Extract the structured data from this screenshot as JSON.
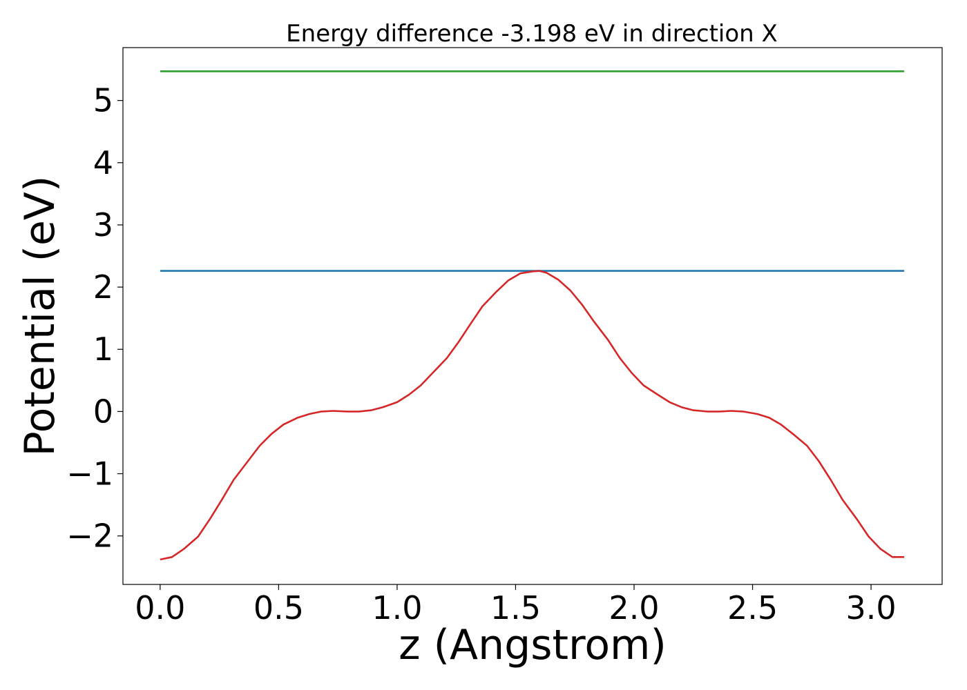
{
  "chart_data": {
    "type": "line",
    "title": "Energy difference -3.198 eV in direction X",
    "xlabel": "z (Angstrom)",
    "ylabel": "Potential (eV)",
    "xlim": [
      -0.157,
      3.3
    ],
    "ylim": [
      -2.78,
      5.85
    ],
    "xticks": [
      0.0,
      0.5,
      1.0,
      1.5,
      2.0,
      2.5,
      3.0
    ],
    "xtick_labels": [
      "0.0",
      "0.5",
      "1.0",
      "1.5",
      "2.0",
      "2.5",
      "3.0"
    ],
    "yticks": [
      -2,
      -1,
      0,
      1,
      2,
      3,
      4,
      5
    ],
    "ytick_labels": [
      "−2",
      "−1",
      "0",
      "1",
      "2",
      "3",
      "4",
      "5"
    ],
    "grid": false,
    "series": [
      {
        "color": "#2ca02c",
        "x": [
          0.0,
          3.14
        ],
        "y": [
          5.47,
          5.47
        ]
      },
      {
        "color": "#1f77b4",
        "x": [
          0.0,
          3.14
        ],
        "y": [
          2.26,
          2.26
        ]
      },
      {
        "color": "#d62728",
        "x": [
          0.0,
          0.05,
          0.1,
          0.16,
          0.21,
          0.26,
          0.31,
          0.37,
          0.42,
          0.47,
          0.52,
          0.58,
          0.63,
          0.68,
          0.73,
          0.79,
          0.84,
          0.89,
          0.94,
          1.0,
          1.05,
          1.1,
          1.15,
          1.21,
          1.26,
          1.31,
          1.36,
          1.42,
          1.47,
          1.52,
          1.57,
          1.6,
          1.63,
          1.68,
          1.73,
          1.78,
          1.83,
          1.89,
          1.94,
          1.99,
          2.04,
          2.1,
          2.15,
          2.2,
          2.25,
          2.31,
          2.36,
          2.41,
          2.46,
          2.52,
          2.57,
          2.62,
          2.67,
          2.73,
          2.78,
          2.83,
          2.88,
          2.94,
          2.99,
          3.04,
          3.09,
          3.14
        ],
        "y": [
          -2.38,
          -2.34,
          -2.21,
          -2.01,
          -1.73,
          -1.42,
          -1.1,
          -0.8,
          -0.55,
          -0.36,
          -0.21,
          -0.1,
          -0.04,
          0.0,
          0.01,
          0.0,
          0.0,
          0.02,
          0.07,
          0.15,
          0.27,
          0.42,
          0.62,
          0.86,
          1.12,
          1.41,
          1.69,
          1.93,
          2.11,
          2.22,
          2.25,
          2.26,
          2.23,
          2.12,
          1.95,
          1.72,
          1.45,
          1.15,
          0.86,
          0.62,
          0.42,
          0.27,
          0.15,
          0.07,
          0.02,
          0.0,
          0.0,
          0.01,
          0.0,
          -0.04,
          -0.1,
          -0.21,
          -0.36,
          -0.55,
          -0.8,
          -1.1,
          -1.42,
          -1.73,
          -2.01,
          -2.21,
          -2.34,
          -2.34
        ]
      }
    ]
  }
}
